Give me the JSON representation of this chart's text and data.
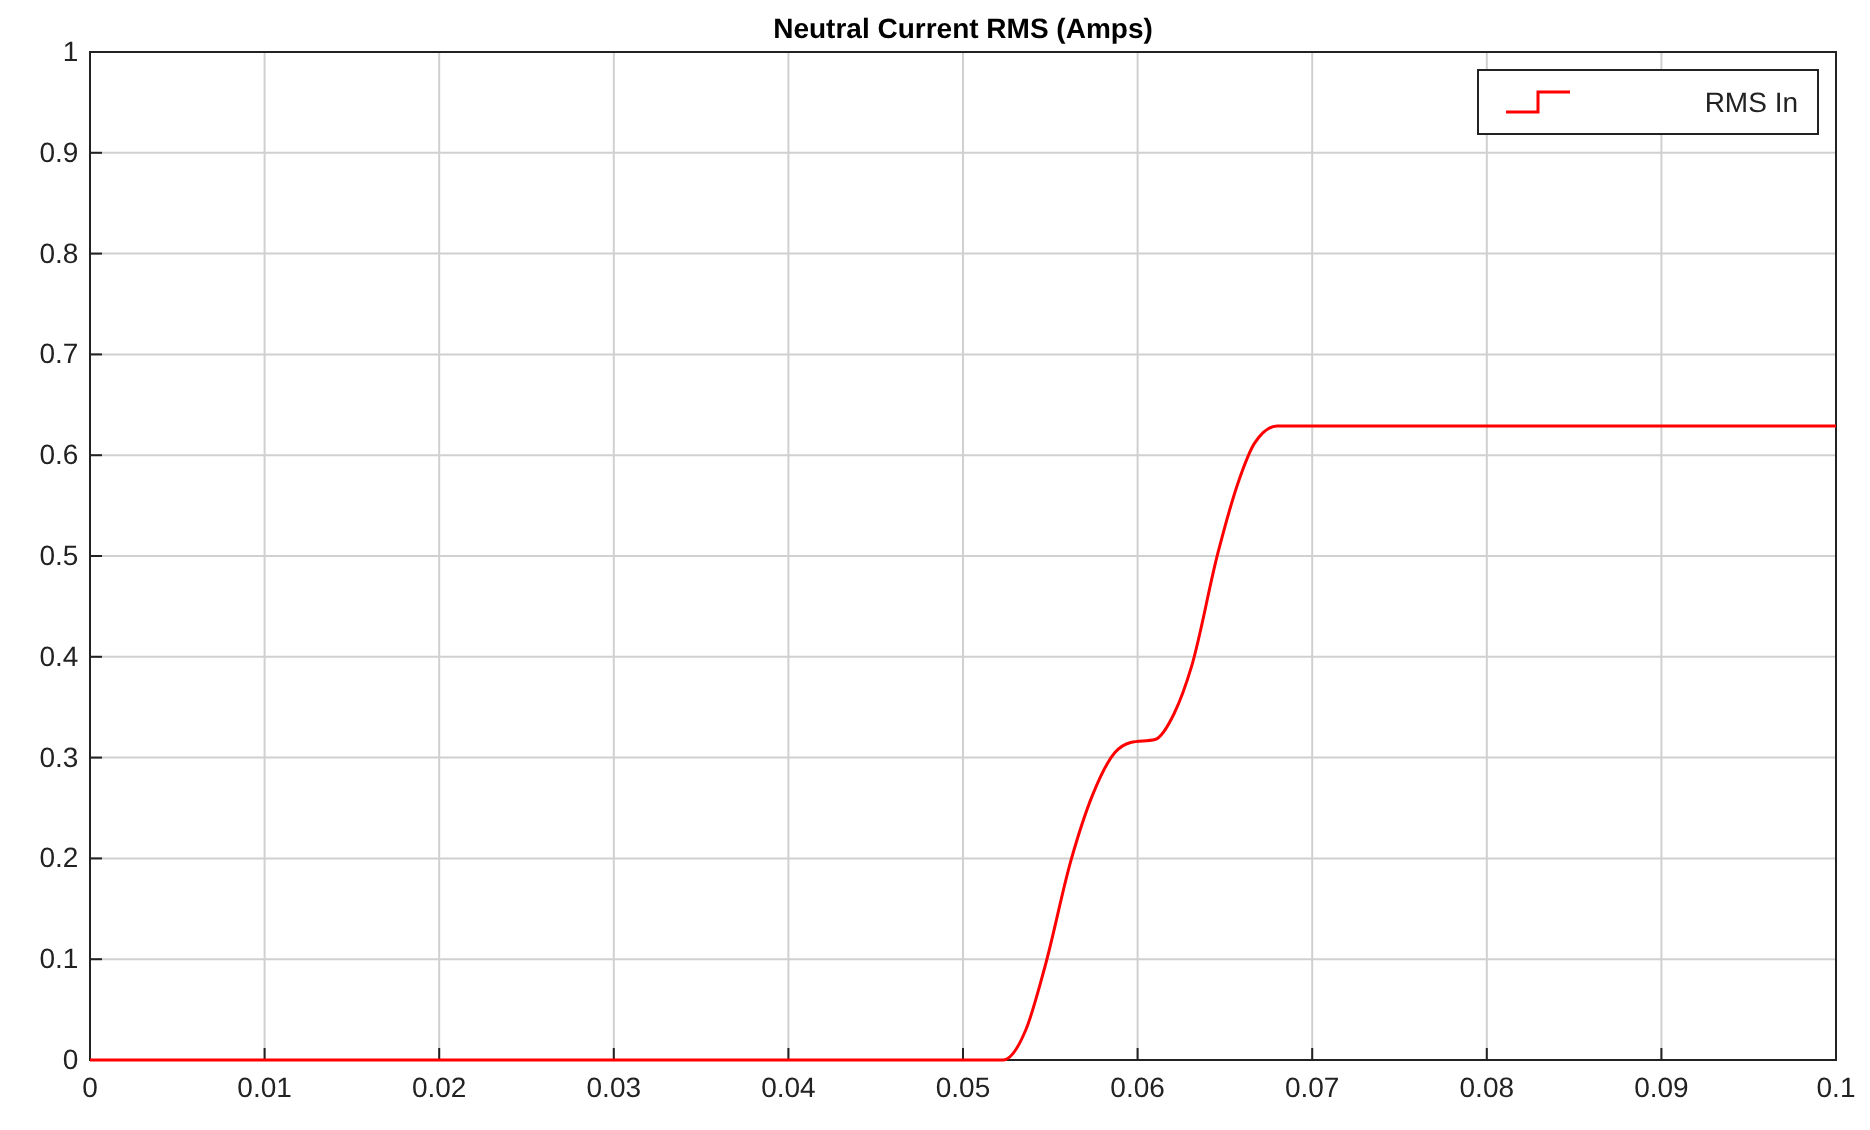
{
  "chart_data": {
    "type": "line",
    "title": "Neutral Current RMS (Amps)",
    "xlim": [
      0,
      0.1
    ],
    "ylim": [
      0,
      1
    ],
    "xticks": [
      0,
      0.01,
      0.02,
      0.03,
      0.04,
      0.05,
      0.06,
      0.07,
      0.08,
      0.09,
      0.1
    ],
    "yticks": [
      0,
      0.1,
      0.2,
      0.3,
      0.4,
      0.5,
      0.6,
      0.7,
      0.8,
      0.9,
      1
    ],
    "grid": true,
    "legend": "top right",
    "series": [
      {
        "name": "RMS In",
        "color": "#ff0000",
        "x": [
          0,
          0.0523,
          0.0536,
          0.0547,
          0.0562,
          0.0574,
          0.0587,
          0.0596,
          0.061,
          0.0621,
          0.0631,
          0.0646,
          0.0658,
          0.0667,
          0.068,
          0.1
        ],
        "values": [
          0,
          0,
          0.03,
          0.093,
          0.199,
          0.262,
          0.305,
          0.315,
          0.318,
          0.344,
          0.391,
          0.503,
          0.575,
          0.612,
          0.629,
          0.629
        ]
      }
    ]
  }
}
